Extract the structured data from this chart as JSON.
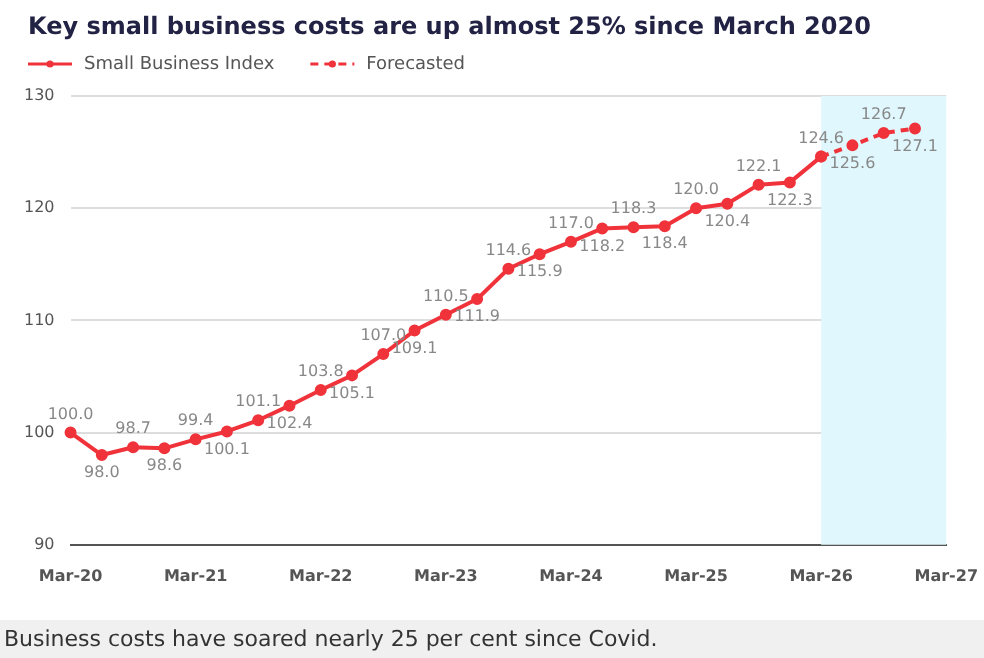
{
  "chart_data": {
    "type": "line",
    "title": "Key small business costs are up almost 25% since March 2020",
    "categories": [
      "Mar-20",
      null,
      null,
      null,
      "Mar-21",
      null,
      null,
      null,
      "Mar-22",
      null,
      null,
      null,
      "Mar-23",
      null,
      null,
      null,
      "Mar-24",
      null,
      null,
      null,
      "Mar-25",
      null,
      null,
      null,
      "Mar-26",
      null,
      null,
      null,
      "Mar-27"
    ],
    "series": [
      {
        "name": "Small Business Index",
        "color": "#f0333a",
        "line_style": "solid",
        "values": [
          100.0,
          98.0,
          98.7,
          98.6,
          99.4,
          100.1,
          101.1,
          102.4,
          103.8,
          105.1,
          107.0,
          109.1,
          110.5,
          111.9,
          114.6,
          115.9,
          117.0,
          118.2,
          118.3,
          118.4,
          120.0,
          120.4,
          122.1,
          122.3,
          124.6,
          null,
          null,
          null,
          null
        ],
        "value_labels": [
          "100.0",
          "98.0",
          "98.7",
          "98.6",
          "99.4",
          "100.1",
          "101.1",
          "102.4",
          "103.8",
          "105.1",
          "107.0",
          "109.1",
          "110.5",
          "111.9",
          "114.6",
          "115.9",
          "117.0",
          "118.2",
          "118.3",
          "118.4",
          "120.0",
          "120.4",
          "122.1",
          "122.3",
          "124.6",
          null,
          null,
          null,
          null
        ]
      },
      {
        "name": "Forecasted",
        "color": "#f0333a",
        "line_style": "dashed",
        "values": [
          null,
          null,
          null,
          null,
          null,
          null,
          null,
          null,
          null,
          null,
          null,
          null,
          null,
          null,
          null,
          null,
          null,
          null,
          null,
          null,
          null,
          null,
          null,
          null,
          124.6,
          125.6,
          126.7,
          127.1,
          null
        ],
        "value_labels": [
          null,
          null,
          null,
          null,
          null,
          null,
          null,
          null,
          null,
          null,
          null,
          null,
          null,
          null,
          null,
          null,
          null,
          null,
          null,
          null,
          null,
          null,
          null,
          null,
          null,
          "125.6",
          "126.7",
          "127.1",
          null
        ]
      }
    ],
    "ylim": [
      90,
      130
    ],
    "yticks": [
      90,
      100,
      110,
      120,
      130
    ],
    "grid": "y",
    "legend": "top left",
    "marker": "circle",
    "bands": [
      {
        "axis": "x",
        "from": "Mar-26",
        "to": "Mar-27",
        "color": "#e0f7fd"
      }
    ],
    "annotations": [
      "Business costs have soared nearly 25 per cent since Covid."
    ]
  }
}
